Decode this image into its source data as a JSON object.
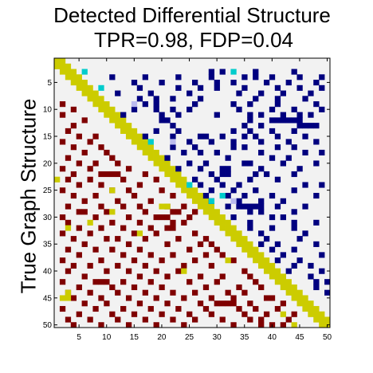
{
  "chart_data": {
    "type": "heatmap",
    "title": [
      "Detected Differential Structure",
      "TPR=0.98, FDP=0.04"
    ],
    "ylabel": "True Graph Structure",
    "xlabel": "",
    "n": 50,
    "xlim": [
      1,
      50
    ],
    "ylim": [
      1,
      50
    ],
    "x_ticks": [
      5,
      10,
      15,
      20,
      25,
      30,
      35,
      40,
      45,
      50
    ],
    "y_ticks": [
      5,
      10,
      15,
      20,
      25,
      30,
      35,
      40,
      45,
      50
    ],
    "background_color": "#f2f2f2",
    "diagonal": {
      "color": "#cccc00",
      "description": "band of cells where |row - col| <= 1"
    },
    "legend": "none",
    "colors": {
      "detected_true_positive": "#00007f",
      "false_positive_strong": "#00cccc",
      "false_positive_weak": "#bbbbee",
      "true_structure": "#7f0000",
      "false_negative": "#cccc00"
    },
    "detected_cells": [
      [
        3,
        29
      ],
      [
        3,
        31
      ],
      [
        3,
        37
      ],
      [
        3,
        44
      ],
      [
        4,
        11
      ],
      [
        4,
        17
      ],
      [
        4,
        23
      ],
      [
        4,
        29
      ],
      [
        4,
        35
      ],
      [
        4,
        37
      ],
      [
        4,
        40
      ],
      [
        4,
        45
      ],
      [
        4,
        49
      ],
      [
        5,
        15
      ],
      [
        5,
        20
      ],
      [
        5,
        26
      ],
      [
        5,
        30
      ],
      [
        5,
        33
      ],
      [
        5,
        39
      ],
      [
        5,
        43
      ],
      [
        5,
        48
      ],
      [
        6,
        16
      ],
      [
        6,
        23
      ],
      [
        6,
        27
      ],
      [
        6,
        30
      ],
      [
        6,
        35
      ],
      [
        6,
        41
      ],
      [
        6,
        45
      ],
      [
        6,
        49
      ],
      [
        7,
        12
      ],
      [
        7,
        18
      ],
      [
        7,
        25
      ],
      [
        7,
        34
      ],
      [
        7,
        38
      ],
      [
        7,
        42
      ],
      [
        7,
        47
      ],
      [
        8,
        16
      ],
      [
        8,
        19
      ],
      [
        8,
        22
      ],
      [
        8,
        27
      ],
      [
        8,
        37
      ],
      [
        8,
        41
      ],
      [
        8,
        46
      ],
      [
        9,
        17
      ],
      [
        9,
        19
      ],
      [
        9,
        26
      ],
      [
        9,
        33
      ],
      [
        9,
        36
      ],
      [
        9,
        41
      ],
      [
        9,
        48
      ],
      [
        10,
        15
      ],
      [
        10,
        19
      ],
      [
        10,
        22
      ],
      [
        10,
        25
      ],
      [
        10,
        34
      ],
      [
        10,
        40
      ],
      [
        10,
        44
      ],
      [
        10,
        49
      ],
      [
        11,
        13
      ],
      [
        11,
        20
      ],
      [
        11,
        23
      ],
      [
        11,
        30
      ],
      [
        11,
        36
      ],
      [
        11,
        38
      ],
      [
        11,
        42
      ],
      [
        11,
        45
      ],
      [
        11,
        47
      ],
      [
        12,
        20
      ],
      [
        12,
        21
      ],
      [
        12,
        36
      ],
      [
        12,
        40
      ],
      [
        12,
        41
      ],
      [
        12,
        42
      ],
      [
        12,
        43
      ],
      [
        12,
        44
      ],
      [
        12,
        45
      ],
      [
        13,
        22
      ],
      [
        13,
        35
      ],
      [
        13,
        38
      ],
      [
        13,
        45
      ],
      [
        13,
        46
      ],
      [
        13,
        47
      ],
      [
        13,
        48
      ],
      [
        14,
        19
      ],
      [
        14,
        23
      ],
      [
        14,
        33
      ],
      [
        14,
        36
      ],
      [
        14,
        40
      ],
      [
        14,
        44
      ],
      [
        15,
        17
      ],
      [
        15,
        22
      ],
      [
        15,
        27
      ],
      [
        15,
        28
      ],
      [
        15,
        31
      ],
      [
        15,
        35
      ],
      [
        15,
        37
      ],
      [
        15,
        41
      ],
      [
        15,
        46
      ],
      [
        16,
        25
      ],
      [
        16,
        29
      ],
      [
        16,
        33
      ],
      [
        16,
        38
      ],
      [
        16,
        43
      ],
      [
        16,
        48
      ],
      [
        17,
        22
      ],
      [
        17,
        26
      ],
      [
        17,
        33
      ],
      [
        17,
        35
      ],
      [
        17,
        41
      ],
      [
        17,
        44
      ],
      [
        18,
        24
      ],
      [
        18,
        27
      ],
      [
        18,
        30
      ],
      [
        18,
        38
      ],
      [
        18,
        46
      ],
      [
        18,
        49
      ],
      [
        19,
        21
      ],
      [
        19,
        32
      ],
      [
        19,
        40
      ],
      [
        19,
        43
      ],
      [
        20,
        25
      ],
      [
        20,
        28
      ],
      [
        20,
        35
      ],
      [
        20,
        36
      ],
      [
        20,
        42
      ],
      [
        20,
        48
      ],
      [
        21,
        23
      ],
      [
        21,
        27
      ],
      [
        21,
        31
      ],
      [
        21,
        32
      ],
      [
        21,
        38
      ],
      [
        21,
        45
      ],
      [
        22,
        29
      ],
      [
        22,
        31
      ],
      [
        22,
        32
      ],
      [
        22,
        37
      ],
      [
        22,
        39
      ],
      [
        22,
        44
      ],
      [
        23,
        26
      ],
      [
        23,
        30
      ],
      [
        23,
        36
      ],
      [
        23,
        41
      ],
      [
        24,
        27
      ],
      [
        24,
        31
      ],
      [
        24,
        34
      ],
      [
        24,
        46
      ],
      [
        24,
        49
      ],
      [
        25,
        29
      ],
      [
        25,
        33
      ],
      [
        25,
        37
      ],
      [
        25,
        44
      ],
      [
        26,
        28
      ],
      [
        26,
        32
      ],
      [
        26,
        35
      ],
      [
        26,
        40
      ],
      [
        26,
        48
      ],
      [
        27,
        29
      ],
      [
        27,
        34
      ],
      [
        27,
        38
      ],
      [
        27,
        42
      ],
      [
        28,
        32
      ],
      [
        28,
        34
      ],
      [
        28,
        35
      ],
      [
        28,
        36
      ],
      [
        28,
        37
      ],
      [
        28,
        38
      ],
      [
        28,
        41
      ],
      [
        28,
        46
      ],
      [
        29,
        36
      ],
      [
        29,
        38
      ],
      [
        29,
        44
      ],
      [
        30,
        33
      ],
      [
        30,
        40
      ],
      [
        30,
        42
      ],
      [
        31,
        36
      ],
      [
        31,
        44
      ],
      [
        31,
        48
      ],
      [
        32,
        36
      ],
      [
        32,
        40
      ],
      [
        32,
        44
      ],
      [
        33,
        38
      ],
      [
        33,
        46
      ],
      [
        34,
        39
      ],
      [
        34,
        45
      ],
      [
        35,
        38
      ],
      [
        35,
        41
      ],
      [
        35,
        48
      ],
      [
        36,
        40
      ],
      [
        36,
        44
      ],
      [
        37,
        42
      ],
      [
        37,
        49
      ],
      [
        38,
        41
      ],
      [
        38,
        45
      ],
      [
        39,
        44
      ],
      [
        39,
        47
      ],
      [
        40,
        43
      ],
      [
        40,
        49
      ],
      [
        41,
        47
      ],
      [
        42,
        48
      ],
      [
        42,
        50
      ],
      [
        43,
        48
      ],
      [
        44,
        50
      ]
    ],
    "false_positive_strong_cells": [
      [
        3,
        6
      ],
      [
        3,
        33
      ],
      [
        6,
        9
      ],
      [
        16,
        18
      ],
      [
        24,
        25
      ],
      [
        26,
        31
      ],
      [
        27,
        29
      ]
    ],
    "false_positive_weak_cells": [
      [
        9,
        15
      ],
      [
        16,
        22
      ],
      [
        27,
        33
      ]
    ],
    "true_cells": [
      [
        9,
        2
      ],
      [
        10,
        4
      ],
      [
        11,
        2
      ],
      [
        12,
        6
      ],
      [
        13,
        4
      ],
      [
        14,
        3
      ],
      [
        15,
        5
      ],
      [
        15,
        8
      ],
      [
        16,
        2
      ],
      [
        16,
        7
      ],
      [
        17,
        4
      ],
      [
        17,
        9
      ],
      [
        18,
        6
      ],
      [
        18,
        10
      ],
      [
        19,
        3
      ],
      [
        19,
        11
      ],
      [
        20,
        5
      ],
      [
        20,
        8
      ],
      [
        20,
        12
      ],
      [
        21,
        2
      ],
      [
        21,
        7
      ],
      [
        21,
        14
      ],
      [
        22,
        4
      ],
      [
        22,
        9
      ],
      [
        22,
        10
      ],
      [
        22,
        11
      ],
      [
        22,
        12
      ],
      [
        22,
        17
      ],
      [
        23,
        3
      ],
      [
        23,
        7
      ],
      [
        23,
        13
      ],
      [
        23,
        19
      ],
      [
        24,
        5
      ],
      [
        24,
        9
      ],
      [
        24,
        16
      ],
      [
        25,
        2
      ],
      [
        25,
        11
      ],
      [
        25,
        14
      ],
      [
        25,
        20
      ],
      [
        26,
        4
      ],
      [
        26,
        8
      ],
      [
        26,
        15
      ],
      [
        26,
        22
      ],
      [
        27,
        6
      ],
      [
        27,
        12
      ],
      [
        27,
        18
      ],
      [
        28,
        3
      ],
      [
        28,
        9
      ],
      [
        28,
        13
      ],
      [
        28,
        16
      ],
      [
        28,
        21
      ],
      [
        28,
        24
      ],
      [
        29,
        5
      ],
      [
        29,
        6
      ],
      [
        29,
        10
      ],
      [
        29,
        17
      ],
      [
        29,
        22
      ],
      [
        29,
        23
      ],
      [
        29,
        26
      ],
      [
        30,
        2
      ],
      [
        30,
        8
      ],
      [
        30,
        14
      ],
      [
        30,
        19
      ],
      [
        30,
        20
      ],
      [
        30,
        21
      ],
      [
        30,
        25
      ],
      [
        31,
        3
      ],
      [
        31,
        11
      ],
      [
        31,
        16
      ],
      [
        31,
        22
      ],
      [
        31,
        24
      ],
      [
        32,
        5
      ],
      [
        32,
        9
      ],
      [
        32,
        13
      ],
      [
        32,
        18
      ],
      [
        32,
        21
      ],
      [
        32,
        22
      ],
      [
        33,
        2
      ],
      [
        33,
        7
      ],
      [
        33,
        15
      ],
      [
        33,
        19
      ],
      [
        33,
        26
      ],
      [
        34,
        4
      ],
      [
        34,
        10
      ],
      [
        34,
        12
      ],
      [
        34,
        17
      ],
      [
        34,
        23
      ],
      [
        34,
        28
      ],
      [
        35,
        6
      ],
      [
        35,
        14
      ],
      [
        35,
        21
      ],
      [
        35,
        27
      ],
      [
        35,
        29
      ],
      [
        36,
        3
      ],
      [
        36,
        8
      ],
      [
        36,
        11
      ],
      [
        36,
        16
      ],
      [
        36,
        25
      ],
      [
        36,
        30
      ],
      [
        37,
        5
      ],
      [
        37,
        13
      ],
      [
        37,
        18
      ],
      [
        37,
        22
      ],
      [
        37,
        28
      ],
      [
        37,
        31
      ],
      [
        38,
        2
      ],
      [
        38,
        9
      ],
      [
        38,
        15
      ],
      [
        38,
        20
      ],
      [
        38,
        26
      ],
      [
        38,
        33
      ],
      [
        39,
        4
      ],
      [
        39,
        7
      ],
      [
        39,
        12
      ],
      [
        39,
        17
      ],
      [
        39,
        24
      ],
      [
        39,
        29
      ],
      [
        40,
        3
      ],
      [
        40,
        10
      ],
      [
        40,
        14
      ],
      [
        40,
        19
      ],
      [
        40,
        23
      ],
      [
        40,
        35
      ],
      [
        41,
        6
      ],
      [
        41,
        16
      ],
      [
        41,
        21
      ],
      [
        41,
        27
      ],
      [
        41,
        31
      ],
      [
        41,
        36
      ],
      [
        42,
        2
      ],
      [
        42,
        8
      ],
      [
        42,
        9
      ],
      [
        42,
        10
      ],
      [
        42,
        13
      ],
      [
        42,
        18
      ],
      [
        42,
        25
      ],
      [
        42,
        30
      ],
      [
        42,
        37
      ],
      [
        43,
        5
      ],
      [
        43,
        11
      ],
      [
        43,
        15
      ],
      [
        43,
        20
      ],
      [
        43,
        28
      ],
      [
        43,
        34
      ],
      [
        43,
        38
      ],
      [
        44,
        3
      ],
      [
        44,
        7
      ],
      [
        44,
        12
      ],
      [
        44,
        17
      ],
      [
        44,
        22
      ],
      [
        44,
        26
      ],
      [
        44,
        32
      ],
      [
        44,
        35
      ],
      [
        45,
        4
      ],
      [
        45,
        9
      ],
      [
        45,
        14
      ],
      [
        45,
        19
      ],
      [
        45,
        24
      ],
      [
        45,
        29
      ],
      [
        45,
        33
      ],
      [
        45,
        39
      ],
      [
        45,
        40
      ],
      [
        46,
        6
      ],
      [
        46,
        10
      ],
      [
        46,
        16
      ],
      [
        46,
        21
      ],
      [
        46,
        27
      ],
      [
        46,
        30
      ],
      [
        46,
        31
      ],
      [
        46,
        32
      ],
      [
        46,
        33
      ],
      [
        46,
        36
      ],
      [
        46,
        42
      ],
      [
        47,
        2
      ],
      [
        47,
        8
      ],
      [
        47,
        13
      ],
      [
        47,
        18
      ],
      [
        47,
        23
      ],
      [
        47,
        28
      ],
      [
        47,
        34
      ],
      [
        47,
        37
      ],
      [
        47,
        41
      ],
      [
        48,
        5
      ],
      [
        48,
        11
      ],
      [
        48,
        15
      ],
      [
        48,
        20
      ],
      [
        48,
        25
      ],
      [
        48,
        29
      ],
      [
        48,
        35
      ],
      [
        48,
        39
      ],
      [
        48,
        44
      ],
      [
        49,
        3
      ],
      [
        49,
        7
      ],
      [
        49,
        12
      ],
      [
        49,
        17
      ],
      [
        49,
        22
      ],
      [
        49,
        26
      ],
      [
        49,
        31
      ],
      [
        49,
        36
      ],
      [
        49,
        38
      ],
      [
        49,
        43
      ],
      [
        50,
        4
      ],
      [
        50,
        9
      ],
      [
        50,
        14
      ],
      [
        50,
        19
      ],
      [
        50,
        24
      ],
      [
        50,
        33
      ],
      [
        50,
        38
      ],
      [
        50,
        40
      ],
      [
        50,
        42
      ]
    ],
    "false_negative_cells": [
      [
        23,
        1
      ],
      [
        25,
        11
      ],
      [
        28,
        20
      ],
      [
        28,
        21
      ],
      [
        29,
        11
      ],
      [
        31,
        7
      ],
      [
        32,
        3
      ],
      [
        33,
        16
      ],
      [
        38,
        32
      ],
      [
        39,
        38
      ],
      [
        40,
        24
      ],
      [
        44,
        3
      ],
      [
        45,
        2
      ],
      [
        45,
        3
      ],
      [
        48,
        42
      ],
      [
        50,
        44
      ]
    ]
  }
}
